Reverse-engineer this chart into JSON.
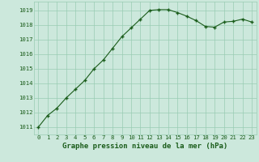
{
  "x": [
    0,
    1,
    2,
    3,
    4,
    5,
    6,
    7,
    8,
    9,
    10,
    11,
    12,
    13,
    14,
    15,
    16,
    17,
    18,
    19,
    20,
    21,
    22,
    23
  ],
  "y": [
    1011.0,
    1011.8,
    1012.3,
    1013.0,
    1013.6,
    1014.2,
    1015.0,
    1015.6,
    1016.4,
    1017.2,
    1017.8,
    1018.4,
    1019.0,
    1019.05,
    1019.05,
    1018.85,
    1018.6,
    1018.3,
    1017.9,
    1017.85,
    1018.2,
    1018.25,
    1018.4,
    1018.2
  ],
  "line_color": "#1a5c1a",
  "marker_color": "#1a5c1a",
  "bg_color": "#cce8dc",
  "grid_color": "#99ccb3",
  "title": "Graphe pression niveau de la mer (hPa)",
  "ylim": [
    1010.5,
    1019.6
  ],
  "yticks": [
    1011,
    1012,
    1013,
    1014,
    1015,
    1016,
    1017,
    1018,
    1019
  ],
  "xlim": [
    -0.5,
    23.5
  ],
  "xticks": [
    0,
    1,
    2,
    3,
    4,
    5,
    6,
    7,
    8,
    9,
    10,
    11,
    12,
    13,
    14,
    15,
    16,
    17,
    18,
    19,
    20,
    21,
    22,
    23
  ],
  "title_fontsize": 6.5,
  "tick_fontsize": 5.2,
  "line_width": 0.8,
  "marker_size": 3.5
}
